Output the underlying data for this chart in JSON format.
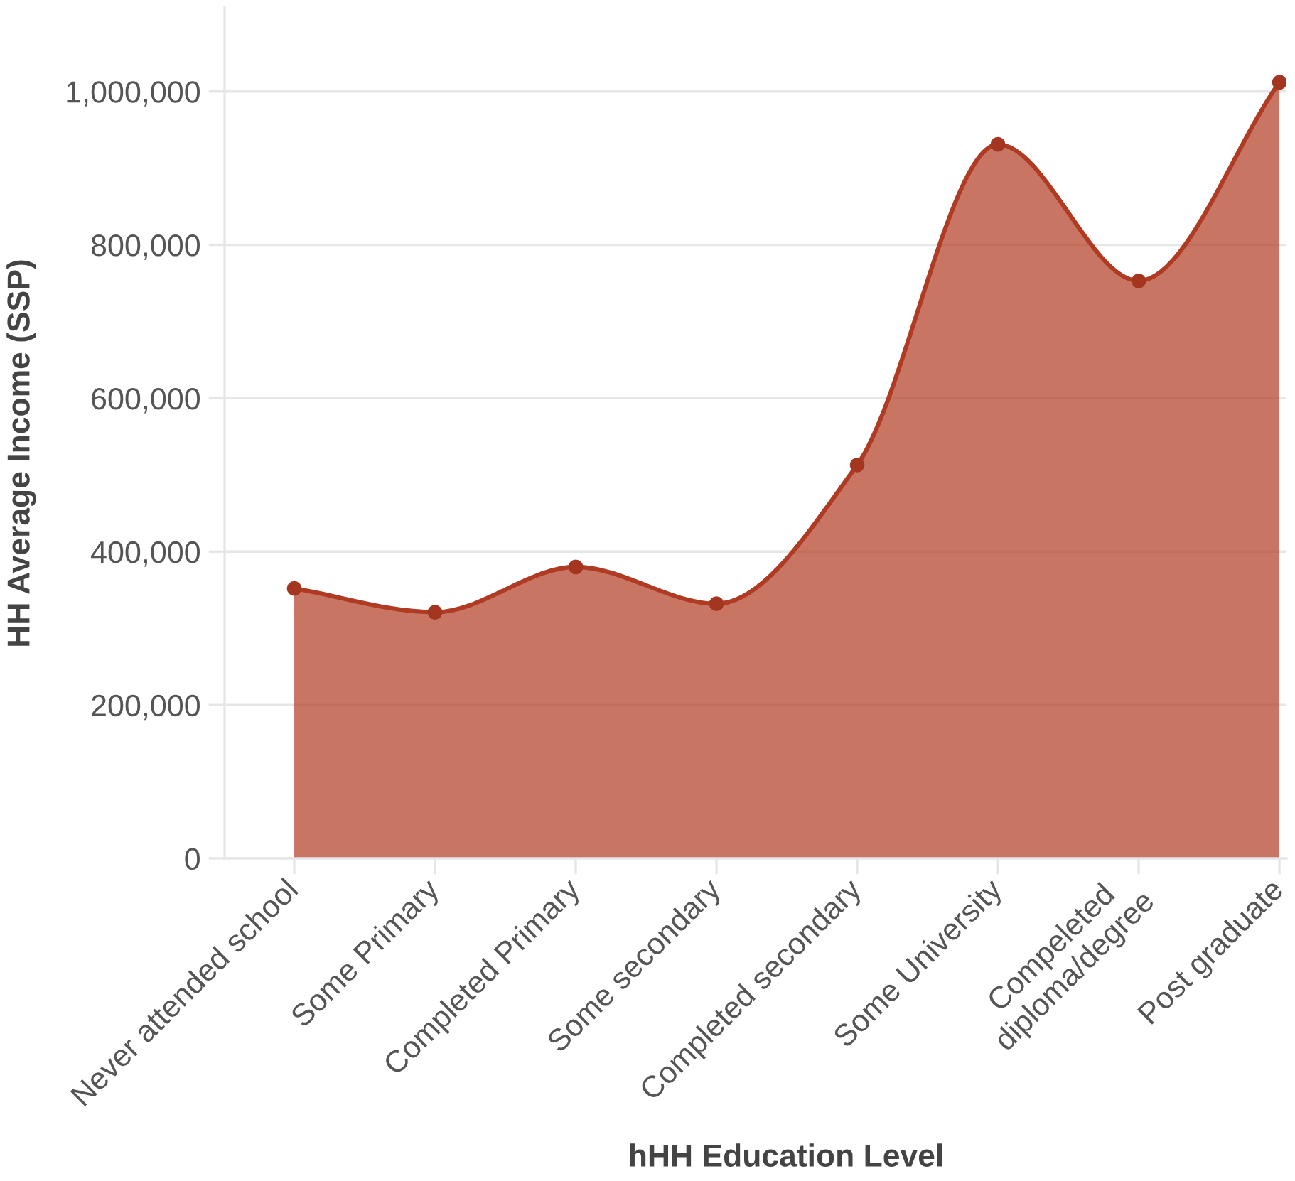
{
  "chart_data": {
    "type": "area",
    "xlabel": "hHH Education Level",
    "ylabel": "HH Average Income (SSP)",
    "categories": [
      "Never attended school",
      "Some Primary",
      "Completed Primary",
      "Some secondary",
      "Completed secondary",
      "Some University",
      "Compeleted\ndiploma/degree",
      "Post graduate"
    ],
    "values": [
      352000,
      321000,
      380000,
      332000,
      513000,
      931000,
      753000,
      1012000
    ],
    "color": "#b03a22",
    "ylim": [
      0,
      1110000
    ],
    "yticks": [
      0,
      {
        "value": 200000,
        "label": "200,000"
      },
      {
        "value": 400000,
        "label": "400,000"
      },
      {
        "value": 600000,
        "label": "600,000"
      },
      {
        "value": 800000,
        "label": "800,000"
      },
      {
        "value": 1000000,
        "label": "1,000,000"
      }
    ],
    "grid": "y",
    "marker": "circle",
    "line_style": "solid"
  }
}
